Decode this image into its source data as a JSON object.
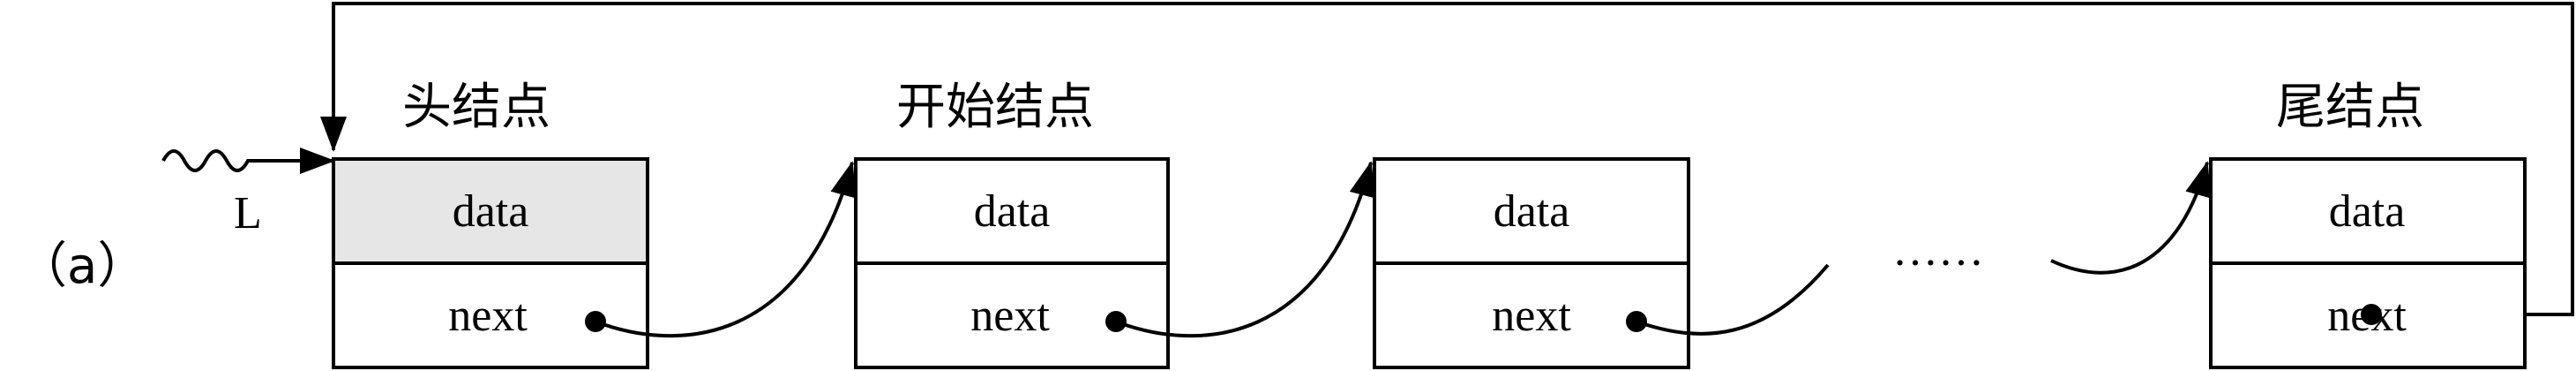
{
  "figure_label": "（a）",
  "pointer_label": "L",
  "nodes": [
    {
      "title": "头结点",
      "data": "data",
      "next": "next",
      "highlight": "#e6e6e6"
    },
    {
      "title": "开始结点",
      "data": "data",
      "next": "next"
    },
    {
      "title": "",
      "data": "data",
      "next": "next"
    },
    {
      "title": "尾结点",
      "data": "data",
      "next": "next"
    }
  ],
  "ellipsis": "……"
}
